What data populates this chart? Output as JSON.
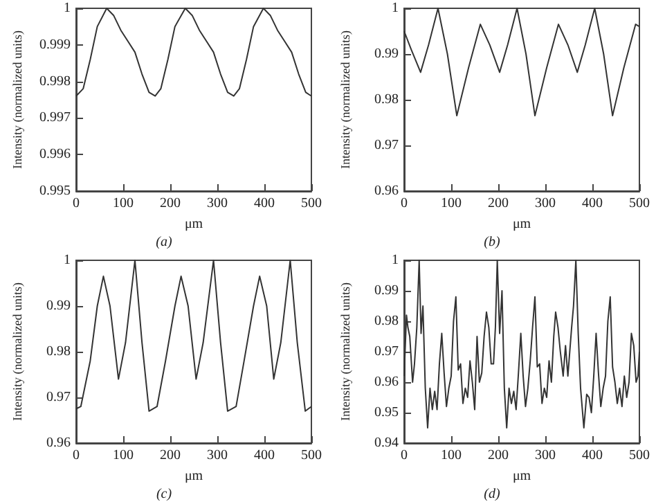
{
  "chart_data": [
    {
      "type": "line",
      "xlabel": "μm",
      "ylabel": "Intensity (normalized units)",
      "annotations": [
        "(a)"
      ],
      "xlim": [
        0,
        500
      ],
      "xticks": [
        0,
        100,
        200,
        300,
        400,
        500
      ],
      "ylim": [
        0.995,
        1
      ],
      "yticks": [
        0.995,
        0.996,
        0.997,
        0.998,
        0.999,
        1
      ],
      "series": [
        {
          "color": "#333333",
          "x": [
            0,
            15,
            30,
            45,
            65,
            80,
            95,
            110,
            125,
            140,
            155,
            168,
            180,
            195,
            210,
            232,
            247,
            262,
            277,
            292,
            307,
            322,
            335,
            347,
            362,
            377,
            398,
            413,
            428,
            443,
            458,
            473,
            488,
            500
          ],
          "values": [
            0.9976,
            0.9978,
            0.9986,
            0.9995,
            1.0,
            0.9998,
            0.9994,
            0.9991,
            0.9988,
            0.9982,
            0.9977,
            0.9976,
            0.9978,
            0.9986,
            0.9995,
            1.0,
            0.9998,
            0.9994,
            0.9991,
            0.9988,
            0.9982,
            0.9977,
            0.9976,
            0.9978,
            0.9986,
            0.9995,
            1.0,
            0.9998,
            0.9994,
            0.9991,
            0.9988,
            0.9982,
            0.9977,
            0.9976
          ]
        }
      ]
    },
    {
      "type": "line",
      "xlabel": "μm",
      "ylabel": "Intensity (normalized units)",
      "annotations": [
        "(b)"
      ],
      "xlim": [
        0,
        500
      ],
      "xticks": [
        0,
        100,
        200,
        300,
        400,
        500
      ],
      "ylim": [
        0.96,
        1
      ],
      "yticks": [
        0.96,
        0.97,
        0.98,
        0.99,
        1
      ],
      "series": [
        {
          "color": "#333333",
          "x": [
            0,
            15,
            35,
            52,
            72,
            92,
            112,
            137,
            162,
            182,
            203,
            220,
            240,
            259,
            278,
            303,
            328,
            348,
            368,
            385,
            405,
            424,
            443,
            467,
            492,
            500
          ],
          "values": [
            0.995,
            0.991,
            0.986,
            0.992,
            1.0,
            0.99,
            0.9765,
            0.987,
            0.9965,
            0.992,
            0.986,
            0.992,
            1.0,
            0.99,
            0.9765,
            0.987,
            0.9965,
            0.992,
            0.986,
            0.992,
            1.0,
            0.99,
            0.9765,
            0.987,
            0.9965,
            0.996
          ]
        }
      ]
    },
    {
      "type": "line",
      "xlabel": "μm",
      "ylabel": "Intensity (normalized units)",
      "annotations": [
        "(c)"
      ],
      "xlim": [
        0,
        500
      ],
      "xticks": [
        0,
        100,
        200,
        300,
        400,
        500
      ],
      "ylim": [
        0.96,
        1
      ],
      "yticks": [
        0.96,
        0.97,
        0.98,
        0.99,
        1
      ],
      "series": [
        {
          "color": "#333333",
          "x": [
            0,
            10,
            30,
            45,
            58,
            72,
            90,
            105,
            125,
            140,
            155,
            172,
            190,
            210,
            223,
            238,
            255,
            270,
            292,
            307,
            322,
            340,
            357,
            377,
            390,
            405,
            420,
            435,
            455,
            470,
            487,
            500
          ],
          "values": [
            0.9675,
            0.968,
            0.978,
            0.99,
            0.9965,
            0.99,
            0.974,
            0.982,
            1.0,
            0.982,
            0.967,
            0.968,
            0.978,
            0.99,
            0.9965,
            0.99,
            0.974,
            0.982,
            1.0,
            0.982,
            0.967,
            0.968,
            0.978,
            0.99,
            0.9965,
            0.99,
            0.974,
            0.982,
            1.0,
            0.982,
            0.967,
            0.968
          ]
        }
      ]
    },
    {
      "type": "line",
      "xlabel": "μm",
      "ylabel": "Intensity (normalized units)",
      "annotations": [
        "(d)"
      ],
      "xlim": [
        0,
        500
      ],
      "xticks": [
        0,
        100,
        200,
        300,
        400,
        500
      ],
      "ylim": [
        0.94,
        1
      ],
      "yticks": [
        0.94,
        0.95,
        0.96,
        0.97,
        0.98,
        0.99,
        1
      ],
      "series": [
        {
          "color": "#333333",
          "x": [
            0,
            5,
            8,
            12,
            18,
            22,
            27,
            32,
            36,
            40,
            45,
            50,
            55,
            60,
            65,
            70,
            75,
            80,
            85,
            90,
            95,
            100,
            105,
            110,
            115,
            120,
            125,
            130,
            135,
            140,
            145,
            150,
            155,
            160,
            165,
            170,
            175,
            180,
            185,
            190,
            194,
            198,
            203,
            208,
            213,
            218,
            223,
            228,
            233,
            238,
            243,
            248,
            253,
            258,
            263,
            268,
            273,
            278,
            283,
            288,
            293,
            298,
            303,
            308,
            313,
            318,
            322,
            327,
            332,
            338,
            343,
            348,
            352,
            356,
            360,
            365,
            370,
            375,
            382,
            388,
            393,
            398,
            403,
            408,
            413,
            418,
            423,
            428,
            433,
            438,
            443,
            448,
            453,
            458,
            463,
            468,
            473,
            478,
            483,
            488,
            493,
            497,
            500
          ],
          "values": [
            0.962,
            0.982,
            0.978,
            0.975,
            0.96,
            0.966,
            0.978,
            1.0,
            0.976,
            0.985,
            0.958,
            0.945,
            0.958,
            0.951,
            0.957,
            0.951,
            0.966,
            0.976,
            0.963,
            0.952,
            0.958,
            0.962,
            0.98,
            0.988,
            0.964,
            0.966,
            0.953,
            0.958,
            0.955,
            0.967,
            0.96,
            0.951,
            0.975,
            0.96,
            0.963,
            0.975,
            0.983,
            0.978,
            0.966,
            0.966,
            0.978,
            1.0,
            0.976,
            0.99,
            0.958,
            0.945,
            0.958,
            0.953,
            0.957,
            0.951,
            0.963,
            0.976,
            0.962,
            0.952,
            0.958,
            0.967,
            0.978,
            0.988,
            0.965,
            0.966,
            0.953,
            0.958,
            0.955,
            0.967,
            0.96,
            0.975,
            0.983,
            0.978,
            0.97,
            0.962,
            0.972,
            0.962,
            0.97,
            0.978,
            0.985,
            1.0,
            0.976,
            0.958,
            0.945,
            0.956,
            0.955,
            0.95,
            0.962,
            0.976,
            0.963,
            0.952,
            0.958,
            0.962,
            0.98,
            0.988,
            0.965,
            0.96,
            0.953,
            0.958,
            0.952,
            0.962,
            0.955,
            0.96,
            0.976,
            0.972,
            0.96,
            0.962,
            0.97
          ]
        }
      ]
    }
  ]
}
